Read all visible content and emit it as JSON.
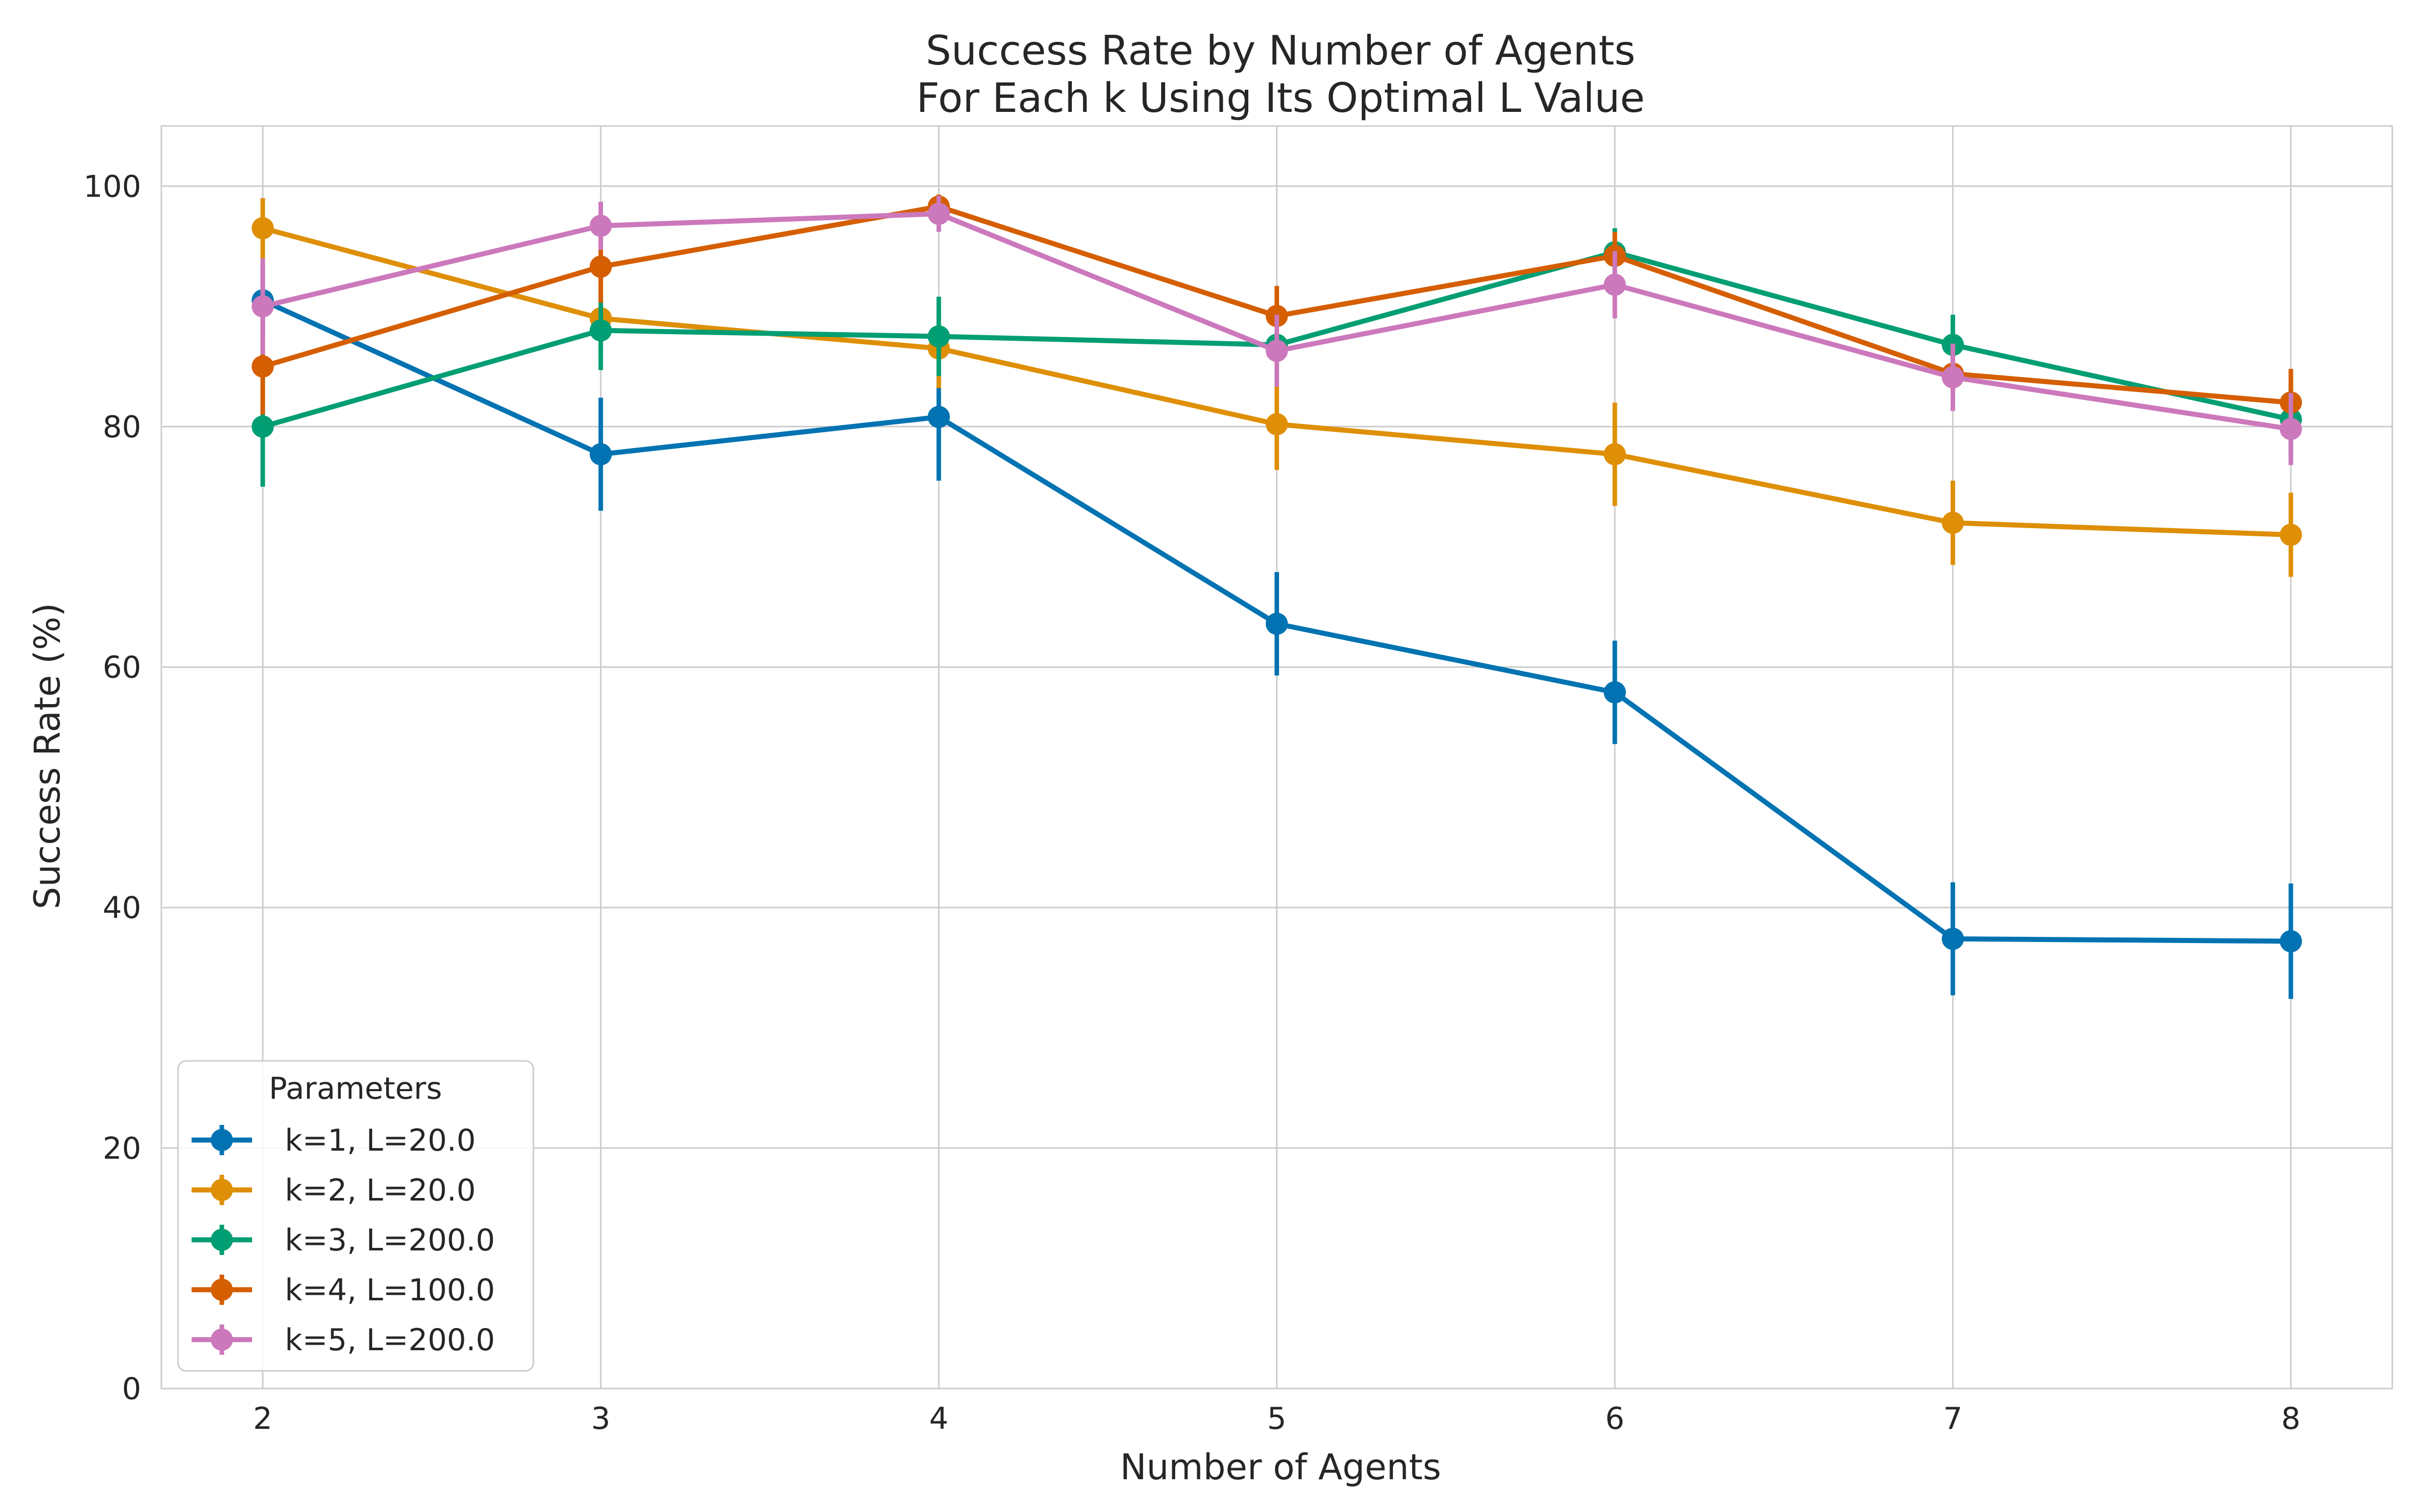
{
  "chart_data": {
    "type": "line",
    "title": "Success Rate by Number of Agents",
    "subtitle": "For Each k Using Its Optimal L Value",
    "xlabel": "Number of Agents",
    "ylabel": "Success Rate (%)",
    "x": [
      2,
      3,
      4,
      5,
      6,
      7,
      8
    ],
    "x_ticks": [
      "2",
      "3",
      "4",
      "5",
      "6",
      "7",
      "8"
    ],
    "xlim": [
      1.7,
      8.3
    ],
    "ylim": [
      0,
      105
    ],
    "y_ticks": [
      "0",
      "20",
      "40",
      "60",
      "80",
      "100"
    ],
    "grid": true,
    "legend_title": "Parameters",
    "legend_position": "lower-left",
    "series": [
      {
        "name": "k=1, L=20.0",
        "color": "#0173b2",
        "values": [
          90.5,
          77.7,
          80.8,
          63.6,
          57.9,
          37.4,
          37.2
        ],
        "error": [
          3.0,
          4.7,
          5.3,
          4.3,
          4.3,
          4.7,
          4.8
        ]
      },
      {
        "name": "k=2, L=20.0",
        "color": "#de8f05",
        "values": [
          96.5,
          89.0,
          86.5,
          80.2,
          77.7,
          72.0,
          71.0
        ],
        "error": [
          2.5,
          3.0,
          3.3,
          3.8,
          4.3,
          3.5,
          3.5
        ]
      },
      {
        "name": "k=3, L=200.0",
        "color": "#029e73",
        "values": [
          80.0,
          88.0,
          87.5,
          86.8,
          94.5,
          86.8,
          80.6
        ],
        "error": [
          5.0,
          3.3,
          3.3,
          2.5,
          2.0,
          2.5,
          3.0
        ]
      },
      {
        "name": "k=4, L=100.0",
        "color": "#d55e00",
        "values": [
          85.0,
          93.3,
          98.3,
          89.2,
          94.2,
          84.4,
          82.0
        ],
        "error": [
          4.0,
          3.0,
          1.0,
          2.5,
          2.0,
          2.5,
          2.8
        ]
      },
      {
        "name": "k=5, L=200.0",
        "color": "#cc78bc",
        "values": [
          90.0,
          96.7,
          97.7,
          86.3,
          91.8,
          84.1,
          79.8
        ],
        "error": [
          4.0,
          2.0,
          1.5,
          3.0,
          2.8,
          2.8,
          3.0
        ]
      }
    ]
  }
}
